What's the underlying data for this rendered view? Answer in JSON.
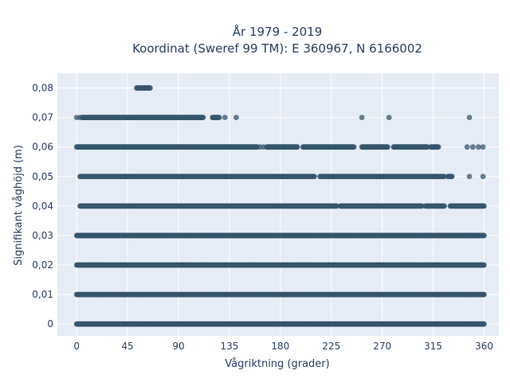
{
  "chart_data": {
    "type": "scatter",
    "title": "År 1979 - 2019",
    "subtitle": "Koordinat (Sweref 99 TM): E 360967, N 6166002",
    "xlabel": "Vågriktning (grader)",
    "ylabel": "Signifikant våghöjd (m)",
    "xlim": [
      -17,
      373
    ],
    "ylim": [
      -0.004,
      0.085
    ],
    "x_ticks": [
      0,
      45,
      90,
      135,
      180,
      225,
      270,
      315,
      360
    ],
    "x_tick_labels": [
      "0",
      "45",
      "90",
      "135",
      "180",
      "225",
      "270",
      "315",
      "360"
    ],
    "y_ticks": [
      0,
      0.01,
      0.02,
      0.03,
      0.04,
      0.05,
      0.06,
      0.07,
      0.08
    ],
    "y_tick_labels": [
      "0",
      "0,01",
      "0,02",
      "0,03",
      "0,04",
      "0,05",
      "0,06",
      "0,07",
      "0,08"
    ],
    "grid": true,
    "colors": {
      "marker": "#34566e",
      "plot_bg": "#e5ecf6",
      "grid": "#ffffff"
    },
    "series": [
      {
        "points": [
          {
            "y": 0.0,
            "x_ranges": [
              [
                0,
                360
              ]
            ]
          },
          {
            "y": 0.01,
            "x_ranges": [
              [
                0,
                360
              ]
            ]
          },
          {
            "y": 0.02,
            "x_ranges": [
              [
                0,
                360
              ]
            ]
          },
          {
            "y": 0.03,
            "x_ranges": [
              [
                0,
                345
              ],
              [
                345,
                360
              ]
            ]
          },
          {
            "y": 0.04,
            "x_ranges": [
              [
                3,
                230
              ],
              [
                233,
                305
              ],
              [
                308,
                325
              ],
              [
                330,
                360
              ]
            ]
          },
          {
            "y": 0.05,
            "x_ranges": [
              [
                3,
                210
              ],
              [
                215,
                325
              ],
              [
                328,
                332
              ]
            ],
            "singles": [
              347,
              359
            ]
          },
          {
            "y": 0.06,
            "x_ranges": [
              [
                0,
                160
              ],
              [
                168,
                195
              ],
              [
                200,
                245
              ],
              [
                252,
                275
              ],
              [
                280,
                310
              ],
              [
                313,
                320
              ]
            ],
            "singles": [
              162,
              165,
              175,
              345,
              350,
              355,
              359
            ]
          },
          {
            "y": 0.07,
            "x_ranges": [
              [
                5,
                112
              ],
              [
                120,
                126
              ]
            ],
            "singles": [
              0,
              3,
              131,
              141,
              252,
              276,
              347
            ]
          },
          {
            "y": 0.08,
            "x_ranges": [
              [
                53,
                65
              ]
            ]
          }
        ]
      }
    ]
  }
}
